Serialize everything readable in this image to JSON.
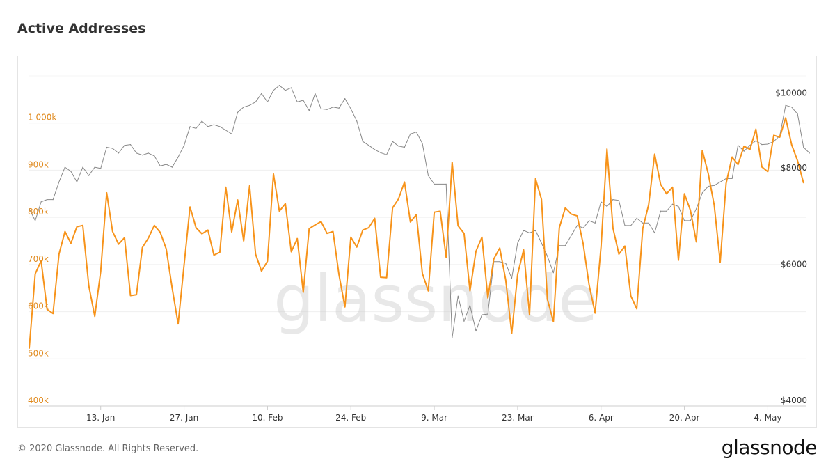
{
  "title": "Active Addresses",
  "footer": "© 2020 Glassnode. All Rights Reserved.",
  "brand": "glassnode",
  "watermark": "glassnode",
  "colors": {
    "active_addresses": "#f7931a",
    "price": "#888888",
    "left_axis": "#e08a1e"
  },
  "chart_data": {
    "type": "line",
    "title": "Active Addresses",
    "x_start": "2020-01-01",
    "x_ticks": [
      {
        "date": "2020-01-13",
        "label": "13. Jan"
      },
      {
        "date": "2020-01-27",
        "label": "27. Jan"
      },
      {
        "date": "2020-02-10",
        "label": "10. Feb"
      },
      {
        "date": "2020-02-24",
        "label": "24. Feb"
      },
      {
        "date": "2020-03-09",
        "label": "9. Mar"
      },
      {
        "date": "2020-03-23",
        "label": "23. Mar"
      },
      {
        "date": "2020-04-06",
        "label": "6. Apr"
      },
      {
        "date": "2020-04-20",
        "label": "20. Apr"
      },
      {
        "date": "2020-05-04",
        "label": "4. May"
      }
    ],
    "y_left": {
      "ticks": [
        {
          "value": 400000,
          "label": "400k"
        },
        {
          "value": 500000,
          "label": "500k"
        },
        {
          "value": 600000,
          "label": "600k"
        },
        {
          "value": 700000,
          "label": "700k"
        },
        {
          "value": 800000,
          "label": "800k"
        },
        {
          "value": 900000,
          "label": "900k"
        },
        {
          "value": 1000000,
          "label": "1 000k"
        }
      ],
      "range": [
        400000,
        1100000
      ]
    },
    "y_right": {
      "scale": "log",
      "ticks": [
        {
          "value": 4000,
          "label": "$4000"
        },
        {
          "value": 6000,
          "label": "$6000"
        },
        {
          "value": 8000,
          "label": "$8000"
        },
        {
          "value": 10000,
          "label": "$10000"
        }
      ],
      "range": [
        4000,
        10700
      ]
    },
    "grid": true,
    "series": [
      {
        "axis": "left",
        "color": "#f7931a",
        "values": [
          522000,
          680000,
          708000,
          605000,
          596000,
          722000,
          770000,
          745000,
          780000,
          783000,
          655000,
          590000,
          685000,
          852000,
          770000,
          743000,
          757000,
          634000,
          636000,
          736000,
          756000,
          783000,
          768000,
          733000,
          650000,
          574000,
          700000,
          822000,
          778000,
          765000,
          773000,
          720000,
          726000,
          864000,
          769000,
          837000,
          750000,
          867000,
          722000,
          686000,
          707000,
          892000,
          813000,
          829000,
          727000,
          755000,
          641000,
          776000,
          784000,
          791000,
          766000,
          770000,
          679000,
          610000,
          758000,
          737000,
          773000,
          778000,
          798000,
          673000,
          672000,
          820000,
          839000,
          875000,
          790000,
          806000,
          681000,
          644000,
          811000,
          813000,
          715000,
          917000,
          782000,
          766000,
          644000,
          728000,
          758000,
          629000,
          712000,
          735000,
          667000,
          554000,
          679000,
          731000,
          593000,
          882000,
          838000,
          626000,
          579000,
          778000,
          820000,
          807000,
          803000,
          744000,
          657000,
          597000,
          738000,
          945000,
          777000,
          722000,
          739000,
          633000,
          606000,
          776000,
          827000,
          934000,
          870000,
          850000,
          864000,
          709000,
          850000,
          815000,
          748000,
          942000,
          893000,
          826000,
          705000,
          872000,
          928000,
          912000,
          951000,
          944000,
          987000,
          907000,
          897000,
          974000,
          970000,
          1011000,
          954000,
          920000,
          873000
        ]
      },
      {
        "axis": "right",
        "color": "#888888",
        "values": [
          7200,
          6950,
          7350,
          7400,
          7400,
          7800,
          8150,
          8050,
          7800,
          8150,
          7950,
          8150,
          8120,
          8650,
          8620,
          8500,
          8700,
          8720,
          8500,
          8450,
          8500,
          8430,
          8180,
          8220,
          8150,
          8400,
          8700,
          9200,
          9150,
          9350,
          9200,
          9250,
          9200,
          9100,
          9000,
          9600,
          9750,
          9800,
          9900,
          10150,
          9900,
          10250,
          10400,
          10250,
          10330,
          9900,
          9950,
          9650,
          10150,
          9700,
          9680,
          9750,
          9720,
          10000,
          9700,
          9350,
          8800,
          8700,
          8590,
          8510,
          8460,
          8800,
          8680,
          8650,
          9000,
          9050,
          8750,
          7950,
          7750,
          7750,
          7750,
          4900,
          5550,
          5150,
          5400,
          5000,
          5250,
          5260,
          6150,
          6150,
          6120,
          5850,
          6500,
          6750,
          6700,
          6750,
          6500,
          6250,
          5950,
          6450,
          6450,
          6650,
          6850,
          6800,
          6950,
          6900,
          7350,
          7250,
          7400,
          7380,
          6850,
          6850,
          7000,
          6900,
          6900,
          6700,
          7150,
          7150,
          7300,
          7250,
          6950,
          6950,
          7200,
          7550,
          7700,
          7720,
          7800,
          7880,
          7880,
          8700,
          8550,
          8700,
          8820,
          8720,
          8730,
          8800,
          8950,
          9800,
          9750,
          9550,
          8650,
          8500
        ]
      }
    ]
  }
}
